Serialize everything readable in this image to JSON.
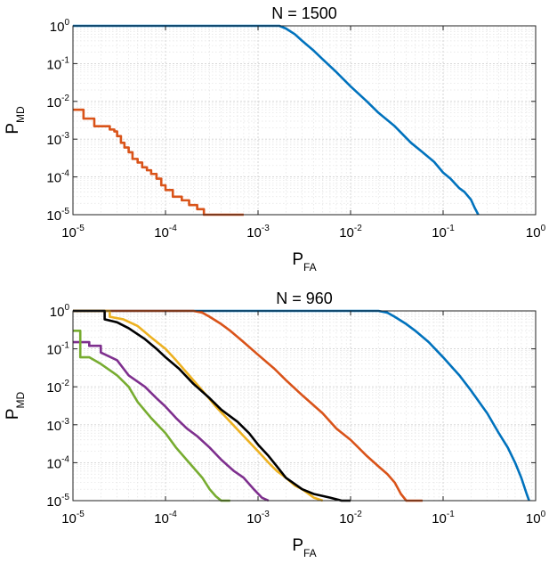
{
  "chart_data": [
    {
      "type": "line",
      "title": "N = 1500",
      "xlabel": {
        "main": "P",
        "sub": "FA"
      },
      "ylabel": {
        "main": "P",
        "sub": "MD"
      },
      "xscale": "log",
      "yscale": "log",
      "xlim": [
        1e-05,
        1
      ],
      "ylim": [
        1e-05,
        1
      ],
      "xticks": [
        {
          "base": "10",
          "exp": "-5"
        },
        {
          "base": "10",
          "exp": "-4"
        },
        {
          "base": "10",
          "exp": "-3"
        },
        {
          "base": "10",
          "exp": "-2"
        },
        {
          "base": "10",
          "exp": "-1"
        },
        {
          "base": "10",
          "exp": "0"
        }
      ],
      "yticks": [
        {
          "base": "10",
          "exp": "-5"
        },
        {
          "base": "10",
          "exp": "-4"
        },
        {
          "base": "10",
          "exp": "-3"
        },
        {
          "base": "10",
          "exp": "-2"
        },
        {
          "base": "10",
          "exp": "-1"
        },
        {
          "base": "10",
          "exp": "0"
        }
      ],
      "grid": true,
      "series": [
        {
          "color": "#0072BD",
          "x": [
            1e-05,
            0.0015,
            0.0017,
            0.002,
            0.0025,
            0.003,
            0.004,
            0.005,
            0.007,
            0.01,
            0.015,
            0.02,
            0.03,
            0.045,
            0.06,
            0.08,
            0.1,
            0.12,
            0.15,
            0.17,
            0.2,
            0.22,
            0.24
          ],
          "y": [
            1,
            1,
            1,
            0.85,
            0.6,
            0.4,
            0.22,
            0.13,
            0.06,
            0.025,
            0.01,
            0.005,
            0.0022,
            0.0008,
            0.00045,
            0.00025,
            0.00013,
            9e-05,
            5e-05,
            4e-05,
            2.5e-05,
            1.5e-05,
            1e-05
          ]
        },
        {
          "color": "#D95319",
          "x": [
            1e-05,
            1.3e-05,
            1.3e-05,
            1.7e-05,
            1.7e-05,
            2.5e-05,
            2.5e-05,
            2.8e-05,
            2.8e-05,
            3e-05,
            3e-05,
            3.3e-05,
            3.3e-05,
            3.6e-05,
            3.6e-05,
            4e-05,
            4e-05,
            4.4e-05,
            4.4e-05,
            5e-05,
            5e-05,
            5.6e-05,
            5.6e-05,
            6.3e-05,
            6.3e-05,
            7e-05,
            7e-05,
            8e-05,
            8e-05,
            9e-05,
            9e-05,
            0.0001,
            0.0001,
            0.00012,
            0.00012,
            0.00015,
            0.00015,
            0.00018,
            0.00018,
            0.00022,
            0.00022,
            0.00026,
            0.00026,
            0.0007
          ],
          "y": [
            0.006,
            0.006,
            0.0035,
            0.0035,
            0.0022,
            0.0022,
            0.0018,
            0.0018,
            0.0016,
            0.0016,
            0.0012,
            0.0012,
            0.0008,
            0.0008,
            0.0006,
            0.0006,
            0.00045,
            0.00045,
            0.0003,
            0.0003,
            0.00024,
            0.00024,
            0.00018,
            0.00018,
            0.00015,
            0.00015,
            0.00012,
            0.00012,
            9e-05,
            9e-05,
            6e-05,
            6e-05,
            4.5e-05,
            4.5e-05,
            3e-05,
            3e-05,
            2.4e-05,
            2.4e-05,
            1.8e-05,
            1.8e-05,
            1.4e-05,
            1.4e-05,
            1e-05,
            1e-05
          ]
        }
      ]
    },
    {
      "type": "line",
      "title": "N = 960",
      "xlabel": {
        "main": "P",
        "sub": "FA"
      },
      "ylabel": {
        "main": "P",
        "sub": "MD"
      },
      "xscale": "log",
      "yscale": "log",
      "xlim": [
        1e-05,
        1
      ],
      "ylim": [
        1e-05,
        1
      ],
      "xticks": [
        {
          "base": "10",
          "exp": "-5"
        },
        {
          "base": "10",
          "exp": "-4"
        },
        {
          "base": "10",
          "exp": "-3"
        },
        {
          "base": "10",
          "exp": "-2"
        },
        {
          "base": "10",
          "exp": "-1"
        },
        {
          "base": "10",
          "exp": "0"
        }
      ],
      "yticks": [
        {
          "base": "10",
          "exp": "-5"
        },
        {
          "base": "10",
          "exp": "-4"
        },
        {
          "base": "10",
          "exp": "-3"
        },
        {
          "base": "10",
          "exp": "-2"
        },
        {
          "base": "10",
          "exp": "-1"
        },
        {
          "base": "10",
          "exp": "0"
        }
      ],
      "grid": true,
      "series": [
        {
          "color": "#0072BD",
          "x": [
            1e-05,
            0.02,
            0.025,
            0.03,
            0.04,
            0.05,
            0.07,
            0.1,
            0.15,
            0.2,
            0.3,
            0.4,
            0.5,
            0.6,
            0.7,
            0.8,
            0.85
          ],
          "y": [
            1,
            1,
            0.9,
            0.7,
            0.45,
            0.3,
            0.15,
            0.06,
            0.02,
            0.008,
            0.002,
            0.0006,
            0.00025,
            0.0001,
            4e-05,
            1.5e-05,
            1e-05
          ]
        },
        {
          "color": "#D95319",
          "x": [
            1e-05,
            0.0002,
            0.00025,
            0.0003,
            0.0004,
            0.0005,
            0.0007,
            0.001,
            0.0015,
            0.002,
            0.003,
            0.005,
            0.007,
            0.01,
            0.015,
            0.02,
            0.025,
            0.03,
            0.035,
            0.04,
            0.06
          ],
          "y": [
            1,
            1,
            0.9,
            0.7,
            0.45,
            0.3,
            0.15,
            0.07,
            0.03,
            0.015,
            0.006,
            0.002,
            0.0008,
            0.0004,
            0.00015,
            8e-05,
            5e-05,
            3e-05,
            1.5e-05,
            1e-05,
            1e-05
          ]
        },
        {
          "color": "#EDB120",
          "x": [
            1e-05,
            2.5e-05,
            2.5e-05,
            3.5e-05,
            5e-05,
            7e-05,
            0.0001,
            0.00013,
            0.00018,
            0.00025,
            0.00035,
            0.0005,
            0.0007,
            0.001,
            0.0013,
            0.0016,
            0.002,
            0.0025,
            0.003,
            0.004,
            0.005
          ],
          "y": [
            1,
            1,
            0.7,
            0.6,
            0.4,
            0.2,
            0.1,
            0.05,
            0.02,
            0.008,
            0.003,
            0.0012,
            0.0005,
            0.0002,
            0.0001,
            6e-05,
            4e-05,
            2.5e-05,
            2e-05,
            1.2e-05,
            1e-05
          ]
        },
        {
          "color": "#000000",
          "x": [
            1e-05,
            2.2e-05,
            2.2e-05,
            3e-05,
            4e-05,
            6e-05,
            8e-05,
            0.0001,
            0.00014,
            0.0002,
            0.0003,
            0.0004,
            0.0006,
            0.0008,
            0.001,
            0.0013,
            0.0016,
            0.002,
            0.003,
            0.004,
            0.006,
            0.008,
            0.01
          ],
          "y": [
            1,
            1,
            0.6,
            0.5,
            0.35,
            0.18,
            0.1,
            0.06,
            0.03,
            0.012,
            0.005,
            0.0025,
            0.0012,
            0.0006,
            0.0003,
            0.00015,
            8e-05,
            4e-05,
            2e-05,
            1.5e-05,
            1.2e-05,
            1e-05,
            1e-05
          ]
        },
        {
          "color": "#7E2F8E",
          "x": [
            1e-05,
            1.5e-05,
            1.5e-05,
            2e-05,
            2e-05,
            3e-05,
            4e-05,
            6e-05,
            8e-05,
            0.0001,
            0.00013,
            0.00017,
            0.00022,
            0.0003,
            0.0004,
            0.00055,
            0.0007,
            0.0009,
            0.0011,
            0.0013
          ],
          "y": [
            0.15,
            0.15,
            0.12,
            0.12,
            0.08,
            0.05,
            0.02,
            0.01,
            0.005,
            0.003,
            0.0015,
            0.0008,
            0.0005,
            0.00025,
            0.00012,
            6e-05,
            4e-05,
            2e-05,
            1.2e-05,
            1e-05
          ]
        },
        {
          "color": "#77AC30",
          "x": [
            1e-05,
            1.2e-05,
            1.2e-05,
            1.5e-05,
            2e-05,
            3e-05,
            4e-05,
            5e-05,
            7e-05,
            0.0001,
            0.00013,
            0.00018,
            0.00025,
            0.0003,
            0.00035,
            0.0004,
            0.0005
          ],
          "y": [
            0.3,
            0.3,
            0.06,
            0.06,
            0.04,
            0.02,
            0.01,
            0.004,
            0.0015,
            0.0006,
            0.00025,
            0.0001,
            4e-05,
            2e-05,
            1.3e-05,
            1e-05,
            1e-05
          ]
        }
      ]
    }
  ]
}
